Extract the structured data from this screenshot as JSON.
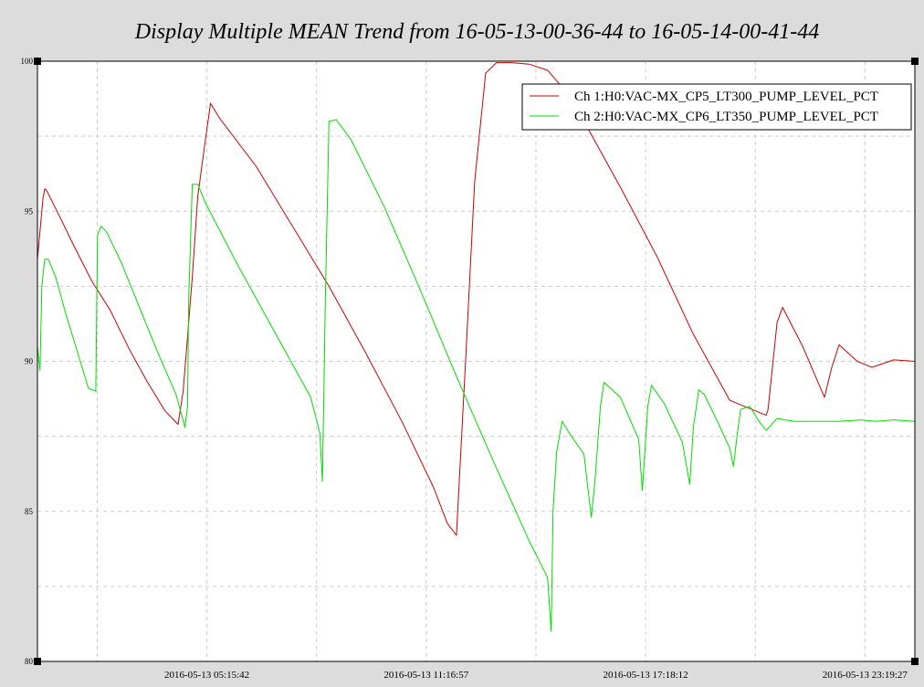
{
  "chart_data": {
    "type": "line",
    "title": "Display Multiple MEAN Trend from 16-05-13-00-36-44 to 16-05-14-00-41-44",
    "xlabel": "",
    "ylabel": "",
    "ylim": [
      80,
      100
    ],
    "xlim_hours": [
      0,
      24.08
    ],
    "yticks": [
      80,
      85,
      90,
      95,
      100
    ],
    "x_tick_labels": [
      {
        "label": "2016-05-13 05:15:42",
        "hours": 4.65
      },
      {
        "label": "2016-05-13 11:16:57",
        "hours": 10.67
      },
      {
        "label": "2016-05-13 17:18:12",
        "hours": 16.69
      },
      {
        "label": "2016-05-13 23:19:27",
        "hours": 22.71
      }
    ],
    "grid": true,
    "legend_position": "top-right",
    "series": [
      {
        "name": "Ch 1:H0:VAC-MX_CP5_LT300_PUMP_LEVEL_PCT",
        "color": "#cc0000",
        "x": [
          0,
          0.15,
          0.2,
          0.25,
          0.6,
          1.0,
          1.5,
          2.0,
          2.5,
          3.0,
          3.5,
          3.86,
          4.0,
          4.25,
          4.4,
          4.6,
          4.75,
          5.0,
          6.0,
          7.0,
          8.0,
          9.0,
          10.0,
          10.87,
          11.25,
          11.5,
          11.75,
          12.0,
          12.3,
          12.6,
          13.0,
          13.5,
          14.0,
          14.5,
          15.0,
          16.0,
          17.0,
          18.0,
          19.0,
          20.0,
          20.05,
          20.3,
          20.45,
          21.0,
          21.6,
          21.8,
          22.0,
          22.5,
          22.9,
          23.5,
          24.08
        ],
        "y": [
          93.4,
          95.4,
          95.75,
          95.7,
          94.85,
          93.85,
          92.65,
          91.7,
          90.45,
          89.35,
          88.35,
          87.9,
          89.0,
          92.8,
          95.5,
          97.3,
          98.6,
          98.1,
          96.5,
          94.5,
          92.5,
          90.3,
          88.0,
          85.8,
          84.6,
          84.2,
          90.0,
          96.0,
          99.6,
          99.95,
          99.95,
          99.9,
          99.7,
          99.0,
          98.0,
          95.8,
          93.5,
          90.9,
          88.7,
          88.2,
          88.4,
          91.3,
          91.8,
          90.5,
          88.8,
          89.8,
          90.55,
          90.0,
          89.8,
          90.05,
          90.0
        ]
      },
      {
        "name": "Ch 2:H0:VAC-MX_CP6_LT350_PUMP_LEVEL_PCT",
        "color": "#00dd00",
        "x": [
          0,
          0.07,
          0.12,
          0.2,
          0.3,
          0.5,
          0.8,
          1.1,
          1.4,
          1.6,
          1.65,
          1.75,
          1.9,
          2.3,
          2.8,
          3.3,
          3.8,
          4.05,
          4.12,
          4.15,
          4.25,
          4.4,
          4.6,
          5.5,
          6.5,
          7.5,
          7.75,
          7.82,
          7.9,
          8.0,
          8.2,
          8.6,
          9.5,
          10.5,
          11.5,
          12.5,
          13.5,
          14.0,
          14.1,
          14.15,
          14.25,
          14.4,
          14.6,
          15.0,
          15.2,
          15.3,
          15.45,
          15.55,
          16.0,
          16.5,
          16.6,
          16.75,
          16.85,
          17.2,
          17.7,
          17.9,
          18.0,
          18.15,
          18.3,
          18.7,
          19.0,
          19.1,
          19.2,
          19.3,
          19.55,
          19.8,
          20.0,
          20.3,
          20.5,
          20.8,
          21.2,
          21.6,
          22.0,
          22.6,
          23.0,
          23.5,
          24.08
        ],
        "y": [
          90.5,
          89.7,
          92.5,
          93.4,
          93.4,
          92.8,
          91.5,
          90.3,
          89.1,
          89.0,
          94.2,
          94.5,
          94.3,
          93.3,
          91.8,
          90.3,
          88.9,
          87.8,
          88.5,
          92.0,
          95.9,
          95.9,
          95.3,
          93.2,
          91.0,
          88.8,
          87.6,
          86.0,
          92.0,
          98.0,
          98.05,
          97.4,
          95.2,
          92.4,
          89.5,
          86.7,
          84.0,
          82.8,
          81.0,
          85.0,
          87.0,
          88.0,
          87.6,
          86.9,
          84.8,
          86.0,
          88.5,
          89.3,
          88.8,
          87.4,
          85.7,
          88.5,
          89.2,
          88.6,
          87.3,
          85.9,
          87.8,
          89.05,
          88.9,
          87.9,
          87.1,
          86.5,
          87.5,
          88.4,
          88.5,
          88.0,
          87.7,
          88.1,
          88.05,
          88.0,
          88.0,
          88.0,
          88.0,
          88.05,
          88.0,
          88.05,
          88.0
        ]
      }
    ]
  }
}
